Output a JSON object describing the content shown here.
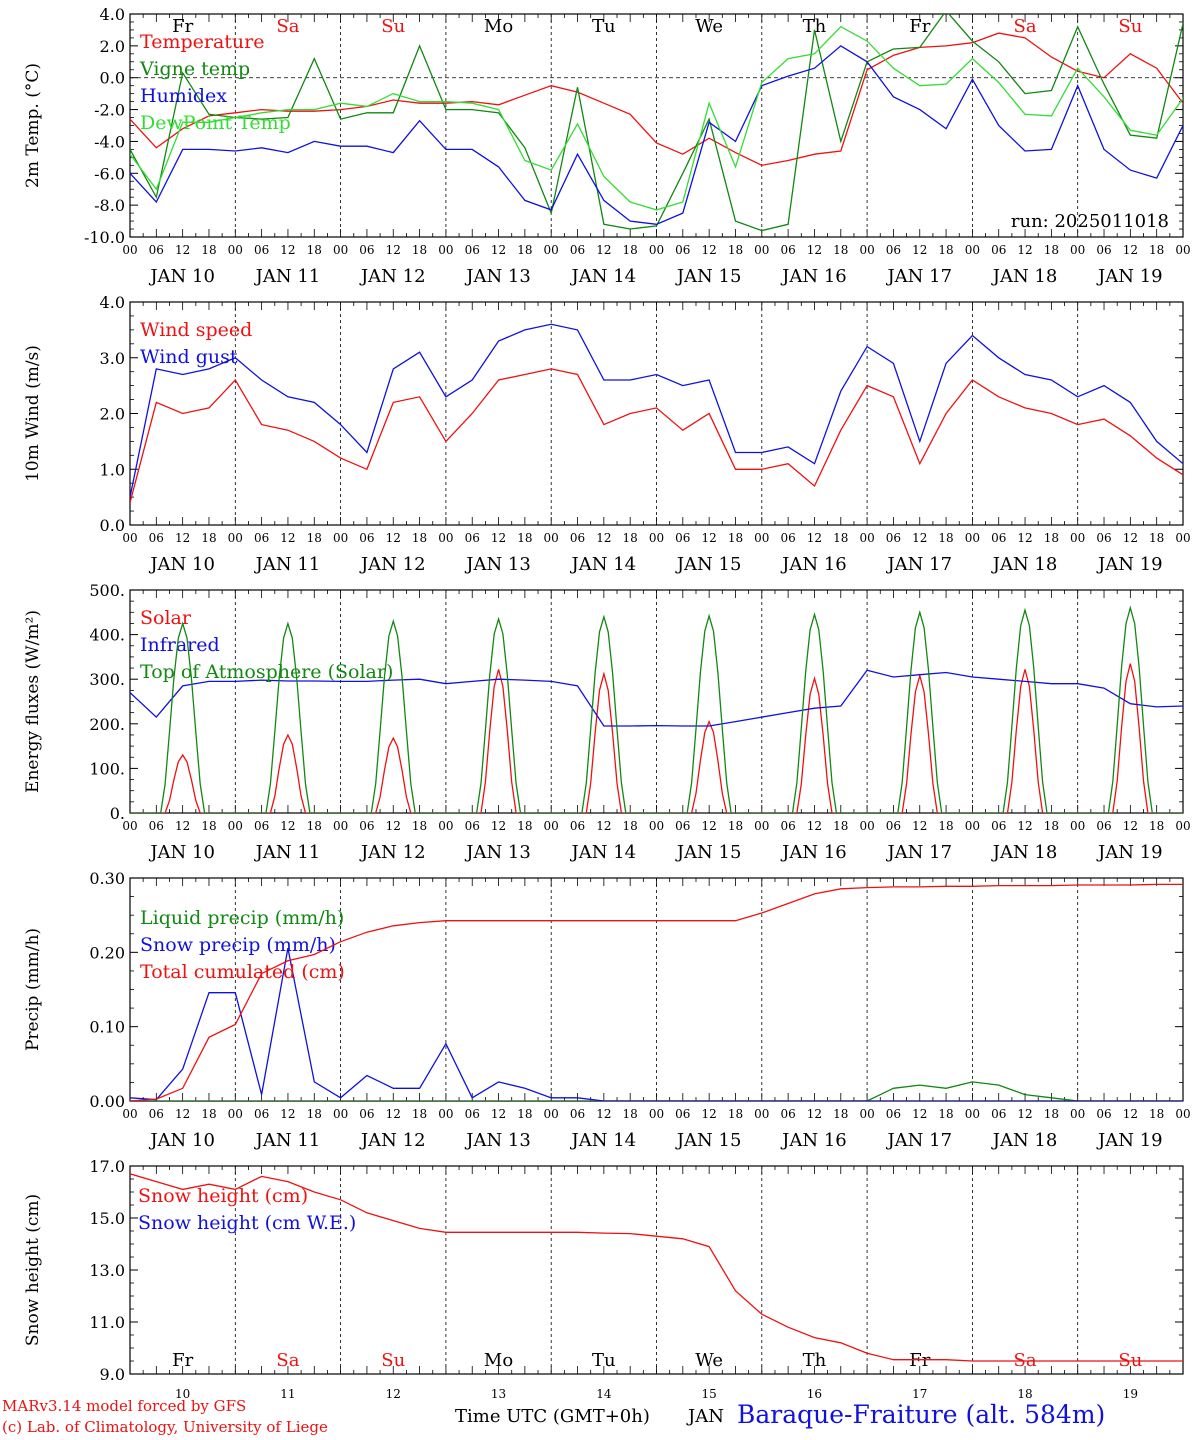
{
  "colors": {
    "red": "#ee1111",
    "blue": "#1111dd",
    "green": "#118811",
    "lightgreen": "#33dd33",
    "black": "#000000"
  },
  "chart_data": [
    {
      "type": "line",
      "ylabel": "2m Temp. (°C)",
      "ylim": [
        -10,
        4
      ],
      "yticks": [
        "4.0",
        "2.0",
        "0.0",
        "-2.0",
        "-4.0",
        "-6.0",
        "-8.0",
        "-10.0"
      ],
      "zero_line": true,
      "run_label": "run: 2025011018",
      "series": [
        {
          "name": "Temperature",
          "color": "#ee1111",
          "step_h": 6,
          "values": [
            -2.6,
            -4.4,
            -3.2,
            -2.4,
            -2.2,
            -2.0,
            -2.1,
            -2.1,
            -2.0,
            -1.8,
            -1.4,
            -1.6,
            -1.6,
            -1.5,
            -1.7,
            -1.1,
            -0.5,
            -0.9,
            -1.6,
            -2.3,
            -4.1,
            -4.8,
            -3.8,
            -4.7,
            -5.5,
            -5.2,
            -4.8,
            -4.6,
            0.5,
            1.4,
            1.9,
            2.0,
            2.2,
            2.8,
            2.5,
            1.3,
            0.4,
            0.0,
            1.5,
            0.6,
            -1.6,
            -1.8,
            -0.3,
            0.0,
            -2.4,
            -3.0,
            -1.1,
            -0.8,
            -3.6,
            -3.4,
            -1.4,
            -2.0,
            -4.3,
            -4.5,
            -1.0,
            -3.2,
            -3.9
          ]
        },
        {
          "name": "Vigne temp",
          "color": "#118811",
          "step_h": 6,
          "values": [
            -4.5,
            -7.5,
            0.3,
            -2.3,
            -2.5,
            -2.6,
            -2.5,
            1.2,
            -2.6,
            -2.2,
            -2.2,
            2.0,
            -2.0,
            -2.0,
            -2.2,
            -4.4,
            -8.5,
            -0.6,
            -9.2,
            -9.5,
            -9.3,
            -6.0,
            -2.6,
            -9.0,
            -9.6,
            -9.2,
            3.0,
            -4.0,
            1.0,
            1.8,
            1.9,
            4.2,
            2.3,
            1.0,
            -1.0,
            -0.8,
            3.2,
            -0.4,
            -3.6,
            -3.8,
            3.4,
            -1.0,
            -5.0,
            -4.6,
            3.5,
            -2.4,
            -6.5,
            -6.8,
            2.2,
            -2.6,
            -7.2,
            -7.4,
            3.0,
            -4.5,
            -8.2
          ]
        },
        {
          "name": "Humidex",
          "color": "#1111dd",
          "step_h": 6,
          "values": [
            -6.0,
            -7.8,
            -4.5,
            -4.5,
            -4.6,
            -4.4,
            -4.7,
            -4.0,
            -4.3,
            -4.3,
            -4.7,
            -2.7,
            -4.5,
            -4.5,
            -5.6,
            -7.7,
            -8.3,
            -4.8,
            -7.7,
            -9.0,
            -9.2,
            -8.5,
            -2.8,
            -4.0,
            -0.5,
            0.1,
            0.6,
            2.0,
            1.0,
            -1.2,
            -2.0,
            -3.2,
            -0.1,
            -3.0,
            -4.6,
            -4.5,
            -0.5,
            -4.5,
            -5.8,
            -6.3,
            -3.0,
            -6.2,
            -7.5,
            -8.0,
            -1.5,
            -6.6,
            -7.2
          ]
        },
        {
          "name": "DewPoint Temp",
          "color": "#33dd33",
          "step_h": 6,
          "values": [
            -4.8,
            -7.0,
            -2.8,
            -2.8,
            -2.5,
            -2.2,
            -2.0,
            -2.0,
            -1.6,
            -1.8,
            -1.0,
            -1.5,
            -1.5,
            -1.6,
            -2.0,
            -5.2,
            -5.8,
            -2.9,
            -6.2,
            -7.8,
            -8.3,
            -7.8,
            -1.6,
            -5.6,
            -0.3,
            1.2,
            1.5,
            3.2,
            2.3,
            0.6,
            -0.5,
            -0.4,
            1.2,
            -0.3,
            -2.3,
            -2.4,
            0.6,
            -1.2,
            -3.3,
            -3.6,
            -1.3,
            -3.6,
            -4.8,
            -5.0,
            -0.5,
            -4.0,
            -5.0
          ]
        }
      ]
    },
    {
      "type": "line",
      "ylabel": "10m Wind (m/s)",
      "ylim": [
        0,
        4
      ],
      "yticks": [
        "4.0",
        "3.0",
        "2.0",
        "1.0",
        "0.0"
      ],
      "series": [
        {
          "name": "Wind speed",
          "color": "#ee1111",
          "step_h": 6,
          "values": [
            0.4,
            2.2,
            2.0,
            2.1,
            2.6,
            1.8,
            1.7,
            1.5,
            1.2,
            1.0,
            2.2,
            2.3,
            1.5,
            2.0,
            2.6,
            2.7,
            2.8,
            2.7,
            1.8,
            2.0,
            2.1,
            1.7,
            2.0,
            1.0,
            1.0,
            1.1,
            0.7,
            1.7,
            2.5,
            2.3,
            1.1,
            2.0,
            2.6,
            2.3,
            2.1,
            2.0,
            1.8,
            1.9,
            1.6,
            1.2,
            0.9,
            1.2,
            1.5,
            1.2,
            1.3,
            1.2,
            1.3,
            1.6,
            1.9,
            1.4,
            1.3,
            0.9,
            0.7,
            0.9,
            0.6,
            0.9,
            0.9
          ]
        },
        {
          "name": "Wind gust",
          "color": "#1111dd",
          "step_h": 6,
          "values": [
            0.5,
            2.8,
            2.7,
            2.8,
            3.0,
            2.6,
            2.3,
            2.2,
            1.8,
            1.3,
            2.8,
            3.1,
            2.3,
            2.6,
            3.3,
            3.5,
            3.6,
            3.5,
            2.6,
            2.6,
            2.7,
            2.5,
            2.6,
            1.3,
            1.3,
            1.4,
            1.1,
            2.4,
            3.2,
            2.9,
            1.5,
            2.9,
            3.4,
            3.0,
            2.7,
            2.6,
            2.3,
            2.5,
            2.2,
            1.5,
            1.1,
            1.5,
            1.9,
            1.6,
            1.7,
            1.6,
            1.6,
            2.0,
            2.4,
            1.8,
            1.7,
            1.1,
            1.0,
            1.1,
            0.8,
            1.1,
            1.2
          ]
        }
      ]
    },
    {
      "type": "line",
      "ylabel": "Energy fluxes (W/m²)",
      "ylim": [
        0,
        500
      ],
      "yticks": [
        "500.",
        "400.",
        "300.",
        "200.",
        "100.",
        "0."
      ],
      "series": [
        {
          "name": "Solar",
          "color": "#ee1111",
          "diurnal_peaks": [
            130,
            175,
            168,
            322,
            312,
            205,
            302,
            308,
            322,
            335
          ]
        },
        {
          "name": "Infrared",
          "color": "#1111dd",
          "step_h": 6,
          "values": [
            270,
            215,
            285,
            295,
            295,
            298,
            296,
            296,
            295,
            295,
            298,
            300,
            290,
            295,
            300,
            298,
            295,
            285,
            195,
            195,
            196,
            195,
            195,
            205,
            215,
            225,
            235,
            240,
            320,
            305,
            310,
            315,
            305,
            300,
            295,
            290,
            290,
            280,
            245,
            238,
            240,
            238,
            236,
            235,
            236,
            235,
            232,
            230,
            225,
            220,
            218,
            215,
            210,
            208,
            210,
            212,
            214,
            212,
            210
          ]
        },
        {
          "name": "Top of Atmosphere (Solar)",
          "color": "#118811",
          "diurnal_peaks": [
            425,
            425,
            430,
            435,
            440,
            442,
            445,
            450,
            455,
            460
          ]
        }
      ]
    },
    {
      "type": "line",
      "ylabel": "Precip (mm/h)",
      "ylim": [
        0,
        0.35
      ],
      "yticks": [
        "0.30",
        "0.20",
        "0.10",
        "0.00"
      ],
      "series": [
        {
          "name": "Liquid precip (mm/h)",
          "color": "#118811",
          "step_h": 6,
          "values": [
            0,
            0,
            0,
            0,
            0,
            0,
            0,
            0,
            0,
            0,
            0,
            0,
            0,
            0,
            0,
            0,
            0,
            0,
            0,
            0,
            0,
            0,
            0,
            0,
            0,
            0,
            0,
            0,
            0,
            0.02,
            0.025,
            0.02,
            0.03,
            0.025,
            0.01,
            0.005,
            0,
            0,
            0,
            0,
            0,
            0,
            0,
            0,
            0,
            0,
            0,
            0,
            0,
            0,
            0,
            0,
            0,
            0,
            0,
            0,
            0
          ]
        },
        {
          "name": "Snow precip (mm/h)",
          "color": "#1111dd",
          "step_h": 6,
          "values": [
            0.005,
            0.002,
            0.05,
            0.17,
            0.17,
            0.01,
            0.24,
            0.03,
            0.005,
            0.04,
            0.02,
            0.02,
            0.09,
            0.005,
            0.03,
            0.02,
            0.005,
            0.005,
            0,
            0,
            0,
            0,
            0,
            0,
            0,
            0,
            0,
            0,
            0,
            0,
            0,
            0,
            0,
            0,
            0,
            0,
            0,
            0,
            0,
            0,
            0,
            0,
            0,
            0,
            0,
            0,
            0,
            0,
            0,
            0,
            0,
            0,
            0,
            0,
            0,
            0,
            0
          ]
        },
        {
          "name": "Total cumulated (cm)",
          "color": "#ee1111",
          "step_h": 6,
          "values": [
            0.0,
            0.003,
            0.02,
            0.1,
            0.12,
            0.2,
            0.22,
            0.23,
            0.25,
            0.265,
            0.275,
            0.28,
            0.283,
            0.283,
            0.283,
            0.283,
            0.283,
            0.283,
            0.283,
            0.283,
            0.283,
            0.283,
            0.283,
            0.283,
            0.295,
            0.31,
            0.325,
            0.333,
            0.335,
            0.336,
            0.336,
            0.337,
            0.337,
            0.338,
            0.338,
            0.338,
            0.339,
            0.339,
            0.339,
            0.34,
            0.34,
            0.34
          ]
        }
      ]
    },
    {
      "type": "line",
      "ylabel": "Snow height (cm)",
      "ylim": [
        9,
        17
      ],
      "yticks": [
        "17.0",
        "15.0",
        "13.0",
        "11.0",
        "9.0"
      ],
      "series": [
        {
          "name": "Snow height (cm)",
          "color": "#ee1111",
          "step_h": 6,
          "values": [
            16.7,
            16.4,
            16.1,
            16.3,
            16.1,
            16.6,
            16.4,
            16.0,
            15.7,
            15.2,
            14.9,
            14.6,
            14.45,
            14.45,
            14.45,
            14.45,
            14.45,
            14.45,
            14.42,
            14.4,
            14.3,
            14.2,
            13.9,
            12.2,
            11.3,
            10.8,
            10.4,
            10.2,
            9.8,
            9.55,
            9.55,
            9.55,
            9.5,
            9.5,
            9.5,
            9.5,
            9.5,
            9.5,
            9.5,
            9.5,
            9.5
          ]
        },
        {
          "name": "Snow height (cm W.E.)",
          "color": "#1111dd",
          "values": []
        }
      ]
    }
  ],
  "time_axis": {
    "hour_ticks": [
      "00",
      "06",
      "12",
      "18"
    ],
    "dates": [
      "JAN 10",
      "JAN 11",
      "JAN 12",
      "JAN 13",
      "JAN 14",
      "JAN 15",
      "JAN 16",
      "JAN 17",
      "JAN 18",
      "JAN 19"
    ],
    "weekdays": [
      "Fr",
      "Sa",
      "Su",
      "Mo",
      "Tu",
      "We",
      "Th",
      "Fr",
      "Sa",
      "Su"
    ],
    "weekday_colors": [
      "#000000",
      "#ee1111",
      "#ee1111",
      "#000000",
      "#000000",
      "#000000",
      "#000000",
      "#000000",
      "#ee1111",
      "#ee1111"
    ],
    "bottom_days": [
      "10",
      "11",
      "12",
      "13",
      "14",
      "15",
      "16",
      "17",
      "18",
      "19"
    ],
    "xlabel": "Time UTC (GMT+0h)",
    "month": "JAN"
  },
  "footer": {
    "model": "MARv3.14 model forced by GFS",
    "lab": "(c) Lab. of Climatology, University of Liege",
    "station": "Baraque-Fraiture (alt. 584m)"
  }
}
